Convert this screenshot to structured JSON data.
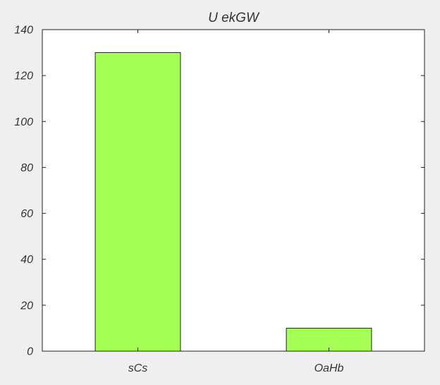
{
  "chart_data": {
    "type": "bar",
    "title": "U ekGW",
    "xlabel": "",
    "ylabel": "",
    "categories": [
      "sCs",
      "OaHb"
    ],
    "values": [
      130,
      10
    ],
    "ylim": [
      0,
      140
    ],
    "yticks": [
      0,
      20,
      40,
      60,
      80,
      100,
      120,
      140
    ],
    "ytick_labels": [
      "0",
      "20",
      "40",
      "60",
      "80",
      "100",
      "120",
      "140"
    ],
    "grid": false,
    "legend": "none",
    "colors": {
      "bar_fill": "#a6ff55",
      "bar_edge": "#222222",
      "plot_background": "#ffffff",
      "figure_background": "#efefef",
      "axis": "#222222",
      "text": "#333333"
    }
  }
}
